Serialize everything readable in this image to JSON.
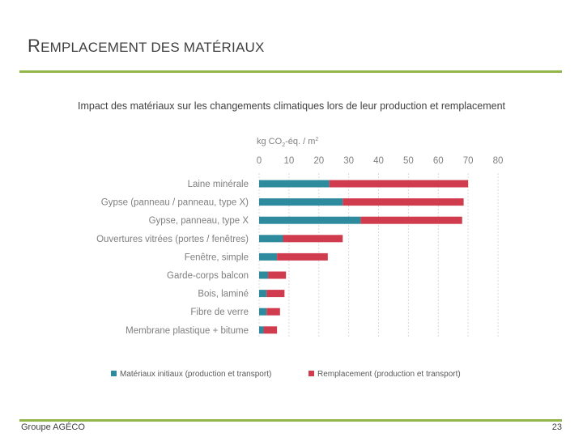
{
  "slide": {
    "title_first": "R",
    "title_rest": "EMPLACEMENT DES MATÉRIAUX",
    "footer_left": "Groupe AGÉCO",
    "page_number": "23"
  },
  "colors": {
    "accent_green": "#92b64a",
    "series_initial": "#2e8b9e",
    "series_replacement": "#d13b4e",
    "text": "#595959"
  },
  "chart_data": {
    "type": "bar",
    "orientation": "horizontal",
    "stacked": true,
    "title": "Impact des matériaux sur les changements climatiques lors de leur production et remplacement",
    "axis_unit_prefix": "kg CO",
    "axis_unit_sub": "2",
    "axis_unit_suffix": "-éq. / m",
    "axis_unit_sup": "2",
    "xlim": [
      0,
      80
    ],
    "ticks": [
      0,
      10,
      20,
      30,
      40,
      50,
      60,
      70,
      80
    ],
    "axis_position": "top",
    "legend_position": "bottom",
    "categories": [
      "Laine minérale",
      "Gypse (panneau / panneau, type X)",
      "Gypse, panneau, type X",
      "Ouvertures vitrées (portes / fenêtres)",
      "Fenêtre, simple",
      "Garde-corps balcon",
      "Bois, laminé",
      "Fibre de verre",
      "Membrane plastique + bitume"
    ],
    "series": [
      {
        "name": "Matériaux initiaux (production et transport)",
        "values": [
          23.5,
          28,
          34,
          8,
          6,
          3,
          2.5,
          2.5,
          1.5
        ]
      },
      {
        "name": "Remplacement (production et transport)",
        "values": [
          46.5,
          40.5,
          34,
          20,
          17,
          6,
          6,
          4.5,
          4.5
        ]
      }
    ]
  }
}
